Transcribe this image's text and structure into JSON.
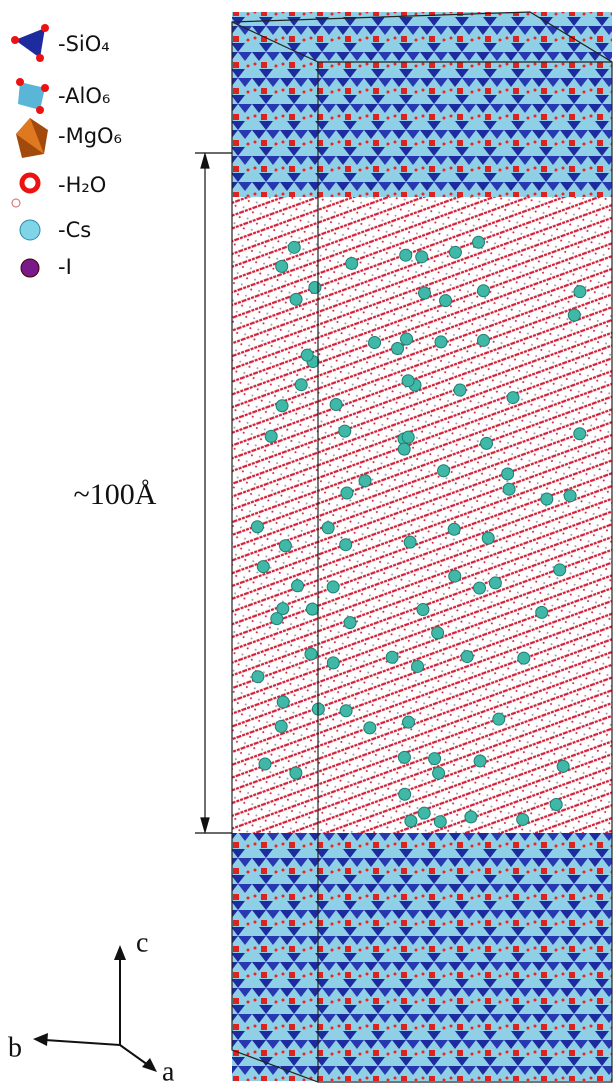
{
  "legend": [
    {
      "label": "-SiO₄"
    },
    {
      "label": "-AlO₆"
    },
    {
      "label": "-MgO₆"
    },
    {
      "label": "-H₂O"
    },
    {
      "label": "-Cs"
    },
    {
      "label": "-I"
    }
  ],
  "dimension_label": "~100Å",
  "axes": {
    "c": "c",
    "b": "b",
    "a": "a"
  }
}
